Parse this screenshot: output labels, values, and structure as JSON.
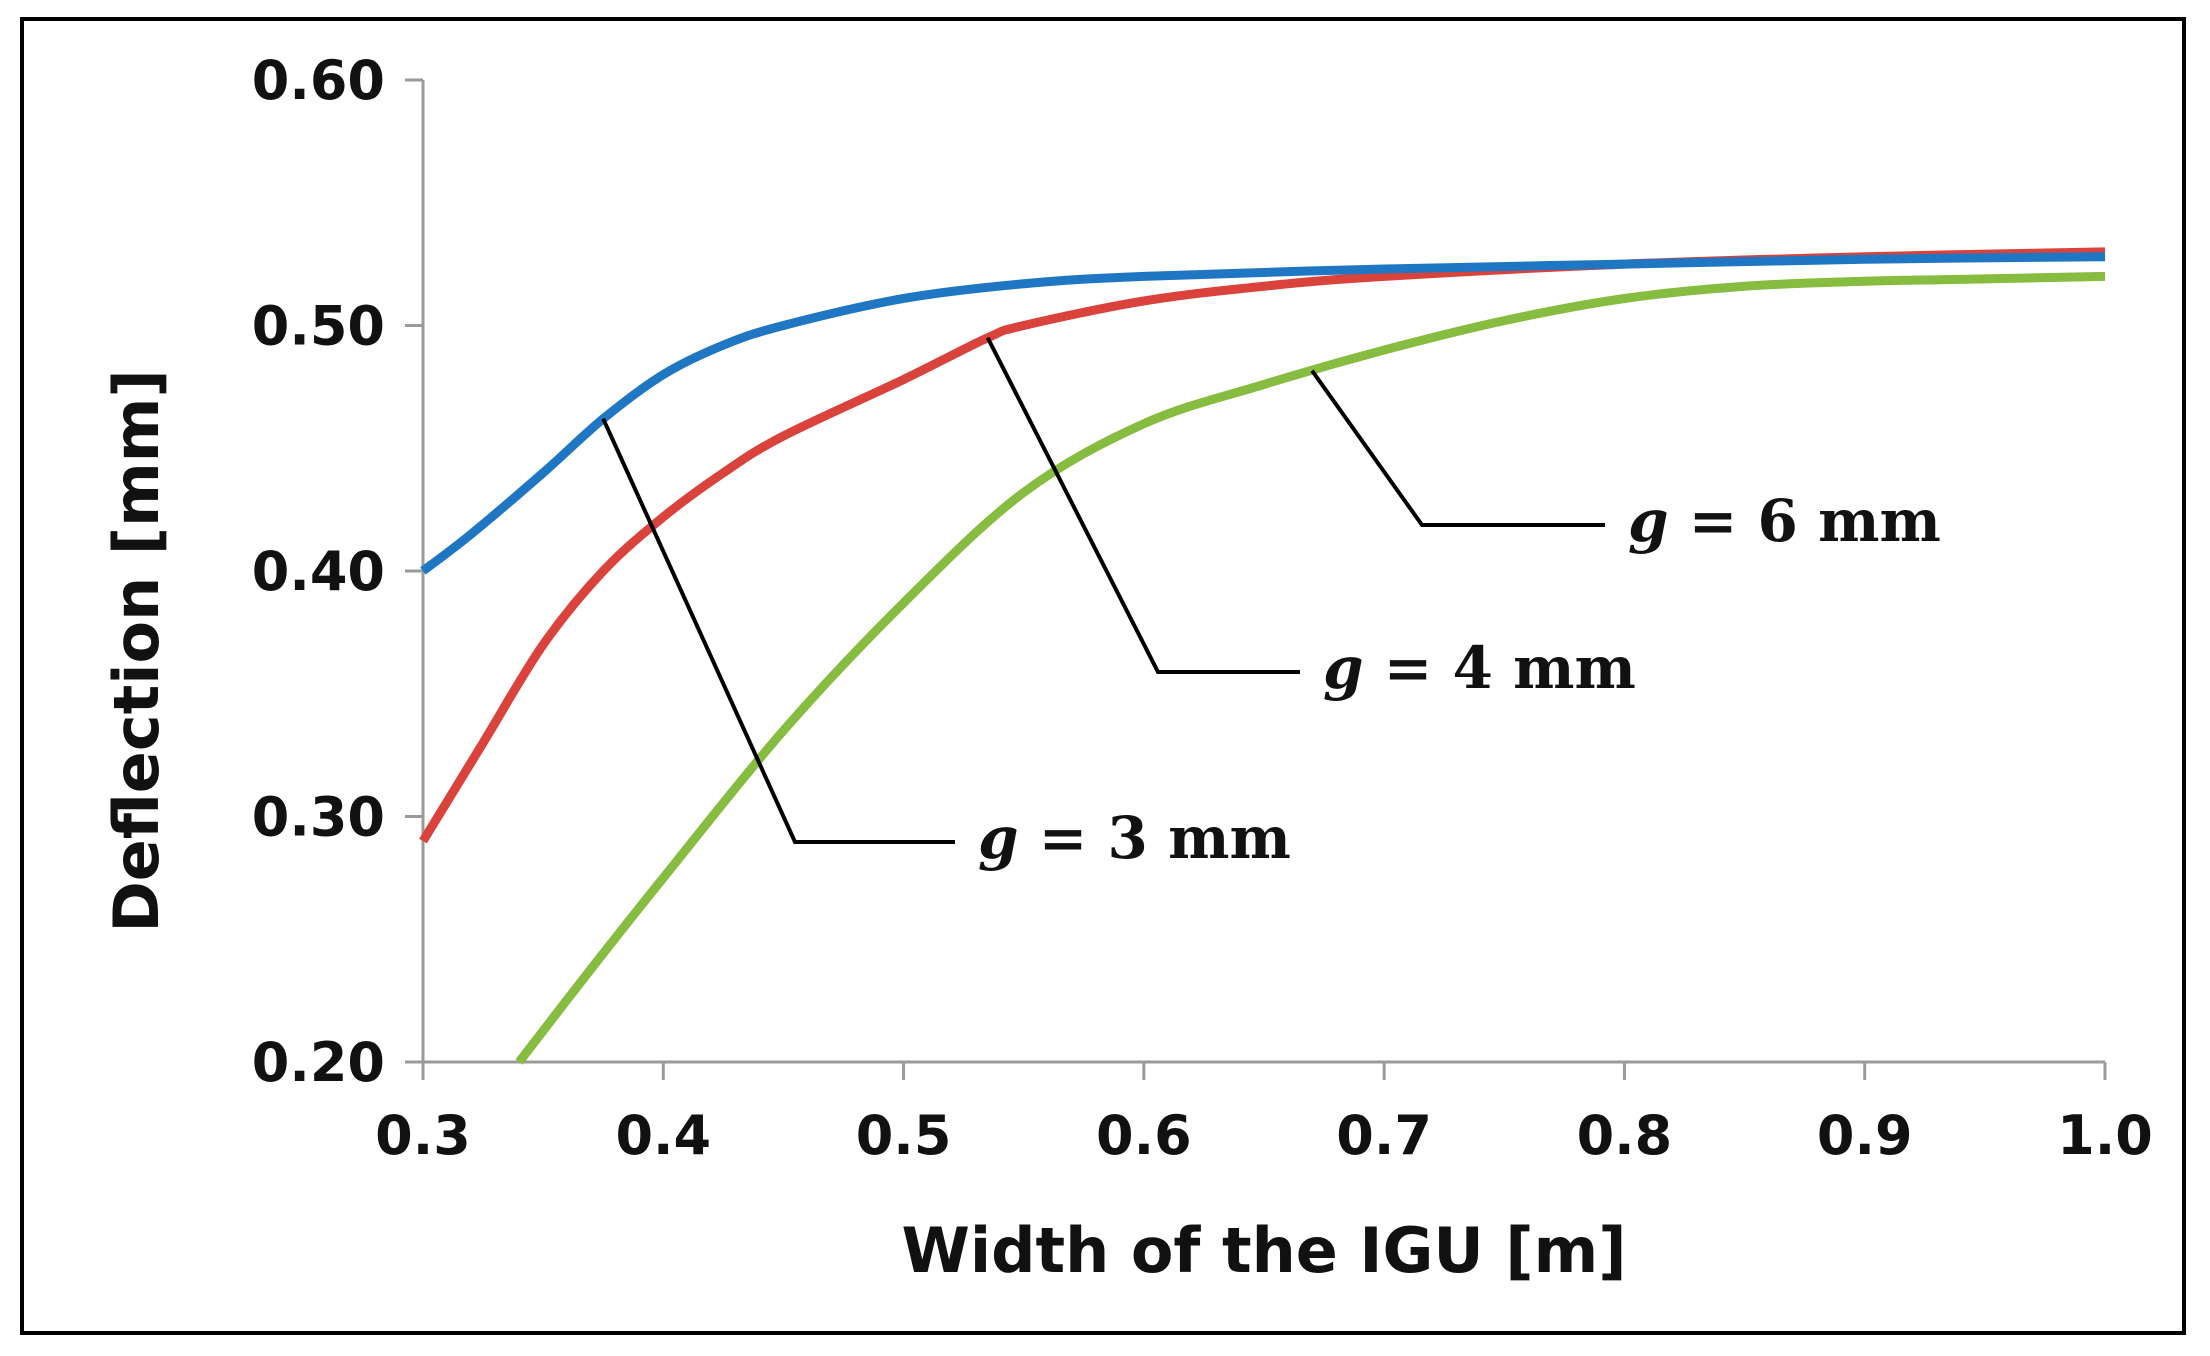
{
  "chart_data": {
    "type": "line",
    "title": "",
    "xlabel": "Width of the IGU [m]",
    "ylabel": "Deflection [mm]",
    "xlim": [
      0.3,
      1.0
    ],
    "ylim": [
      0.2,
      0.6
    ],
    "x_ticks": [
      "0.3",
      "0.4",
      "0.5",
      "0.6",
      "0.7",
      "0.8",
      "0.9",
      "1.0"
    ],
    "y_ticks": [
      "0.20",
      "0.30",
      "0.40",
      "0.50",
      "0.60"
    ],
    "grid": false,
    "legend": "none",
    "series": [
      {
        "color": "#1f77c4",
        "x": [
          0.3,
          0.32,
          0.35,
          0.375,
          0.4,
          0.425,
          0.45,
          0.5,
          0.55,
          0.6,
          0.7,
          0.8,
          0.9,
          1.0
        ],
        "y": [
          0.4,
          0.415,
          0.44,
          0.462,
          0.48,
          0.492,
          0.5,
          0.511,
          0.517,
          0.52,
          0.523,
          0.525,
          0.527,
          0.528
        ]
      },
      {
        "color": "#d9433b",
        "x": [
          0.3,
          0.325,
          0.35,
          0.375,
          0.4,
          0.425,
          0.45,
          0.5,
          0.535,
          0.55,
          0.6,
          0.65,
          0.7,
          0.8,
          0.9,
          1.0
        ],
        "y": [
          0.29,
          0.33,
          0.37,
          0.4,
          0.422,
          0.44,
          0.455,
          0.478,
          0.495,
          0.5,
          0.51,
          0.516,
          0.52,
          0.525,
          0.528,
          0.53
        ]
      },
      {
        "color": "#86bc3f",
        "x": [
          0.34,
          0.37,
          0.4,
          0.45,
          0.5,
          0.55,
          0.6,
          0.65,
          0.7,
          0.75,
          0.8,
          0.85,
          0.9,
          0.95,
          1.0
        ],
        "y": [
          0.2,
          0.238,
          0.275,
          0.335,
          0.387,
          0.432,
          0.46,
          0.476,
          0.49,
          0.502,
          0.511,
          0.516,
          0.518,
          0.519,
          0.52
        ]
      }
    ],
    "annotations": [
      {
        "var": "g",
        "text": " = 3 mm",
        "series": 0,
        "at_x": 0.375
      },
      {
        "var": "g",
        "text": " = 4 mm",
        "series": 1,
        "at_x": 0.535
      },
      {
        "var": "g",
        "text": " = 6 mm",
        "series": 2,
        "at_x": 0.67
      }
    ]
  }
}
